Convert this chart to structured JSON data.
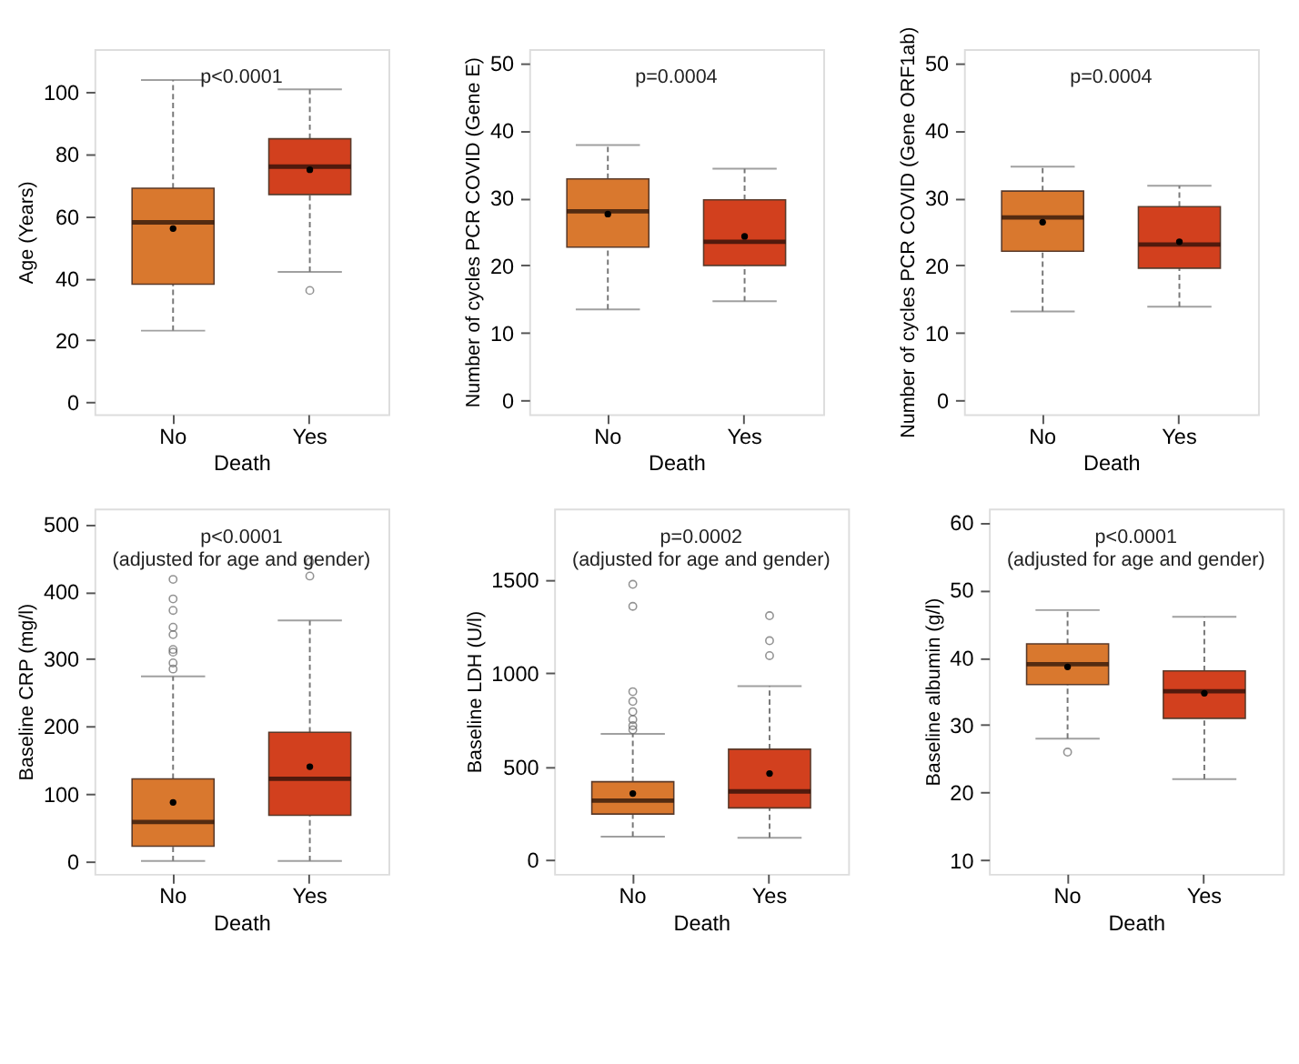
{
  "chart_data": [
    {
      "type": "box",
      "categories": [
        "No",
        "Yes"
      ],
      "xlabel": "Death",
      "ylabel": "Age (Years)",
      "annotations": [
        "p<0.0001"
      ],
      "colors": [
        "#d9782e",
        "#d2401e"
      ],
      "ylim": [
        -4,
        114
      ],
      "yticks": [
        0,
        20,
        40,
        60,
        80,
        100
      ],
      "boxes": [
        {
          "low": 23,
          "q1": 38,
          "median": 58,
          "q3": 69,
          "high": 104,
          "mean": 56
        },
        {
          "low": 42,
          "q1": 67,
          "median": 76,
          "q3": 85,
          "high": 101,
          "mean": 75,
          "outliers": [
            36
          ]
        }
      ]
    },
    {
      "type": "box",
      "categories": [
        "No",
        "Yes"
      ],
      "xlabel": "Death",
      "ylabel": "Number of cycles PCR COVID (Gene E)",
      "annotations": [
        "p=0.0004"
      ],
      "colors": [
        "#d9782e",
        "#d2401e"
      ],
      "ylim": [
        -2,
        52
      ],
      "yticks": [
        0,
        10,
        20,
        30,
        40,
        50
      ],
      "boxes": [
        {
          "low": 13.5,
          "q1": 22.7,
          "median": 28,
          "q3": 32.8,
          "high": 37.8,
          "mean": 27.6
        },
        {
          "low": 14.7,
          "q1": 20,
          "median": 23.5,
          "q3": 29.7,
          "high": 34.3,
          "mean": 24.3
        }
      ]
    },
    {
      "type": "box",
      "categories": [
        "No",
        "Yes"
      ],
      "xlabel": "Death",
      "ylabel": "Number of cycles PCR COVID (Gene ORF1ab)",
      "annotations": [
        "p=0.0004"
      ],
      "colors": [
        "#d9782e",
        "#d2401e"
      ],
      "ylim": [
        -2,
        52
      ],
      "yticks": [
        0,
        10,
        20,
        30,
        40,
        50
      ],
      "boxes": [
        {
          "low": 13.2,
          "q1": 22.1,
          "median": 27.1,
          "q3": 31,
          "high": 34.6,
          "mean": 26.4
        },
        {
          "low": 13.9,
          "q1": 19.6,
          "median": 23.1,
          "q3": 28.7,
          "high": 31.8,
          "mean": 23.5
        }
      ]
    },
    {
      "type": "box",
      "categories": [
        "No",
        "Yes"
      ],
      "xlabel": "Death",
      "ylabel": "Baseline CRP (mg/l)",
      "annotations": [
        "p<0.0001",
        "(adjusted for age and gender)"
      ],
      "colors": [
        "#d9782e",
        "#d2401e"
      ],
      "ylim": [
        -19,
        523
      ],
      "yticks": [
        0,
        100,
        200,
        300,
        400,
        500
      ],
      "boxes": [
        {
          "low": 0,
          "q1": 22,
          "median": 58,
          "q3": 122,
          "high": 274,
          "mean": 87,
          "outliers": [
            418,
            389,
            372,
            347,
            336,
            314,
            310,
            294,
            285
          ]
        },
        {
          "low": 0,
          "q1": 68,
          "median": 122,
          "q3": 191,
          "high": 357,
          "mean": 140,
          "outliers": [
            444,
            423
          ]
        }
      ]
    },
    {
      "type": "box",
      "categories": [
        "No",
        "Yes"
      ],
      "xlabel": "Death",
      "ylabel": "Baseline LDH (U/l)",
      "annotations": [
        "p=0.0002",
        "(adjusted for age and gender)"
      ],
      "colors": [
        "#d9782e",
        "#d2401e"
      ],
      "ylim": [
        -75,
        1880
      ],
      "yticks": [
        0,
        500,
        1000,
        1500
      ],
      "boxes": [
        {
          "low": 124,
          "q1": 245,
          "median": 317,
          "q3": 418,
          "high": 674,
          "mean": 355,
          "outliers": [
            1475,
            1357,
            900,
            848,
            793,
            751,
            718,
            696
          ]
        },
        {
          "low": 118,
          "q1": 278,
          "median": 366,
          "q3": 592,
          "high": 930,
          "mean": 462,
          "outliers": [
            1307,
            1173,
            1093
          ]
        }
      ]
    },
    {
      "type": "box",
      "categories": [
        "No",
        "Yes"
      ],
      "xlabel": "Death",
      "ylabel": "Baseline albumin (g/l)",
      "annotations": [
        "p<0.0001",
        "(adjusted for age and gender)"
      ],
      "colors": [
        "#d9782e",
        "#d2401e"
      ],
      "ylim": [
        8,
        62
      ],
      "yticks": [
        10,
        20,
        30,
        40,
        50,
        60
      ],
      "boxes": [
        {
          "low": 28,
          "q1": 36,
          "median": 39,
          "q3": 42,
          "high": 47,
          "mean": 38.6,
          "outliers": [
            26
          ]
        },
        {
          "low": 22,
          "q1": 31,
          "median": 35,
          "q3": 38,
          "high": 46,
          "mean": 34.7
        }
      ]
    }
  ]
}
